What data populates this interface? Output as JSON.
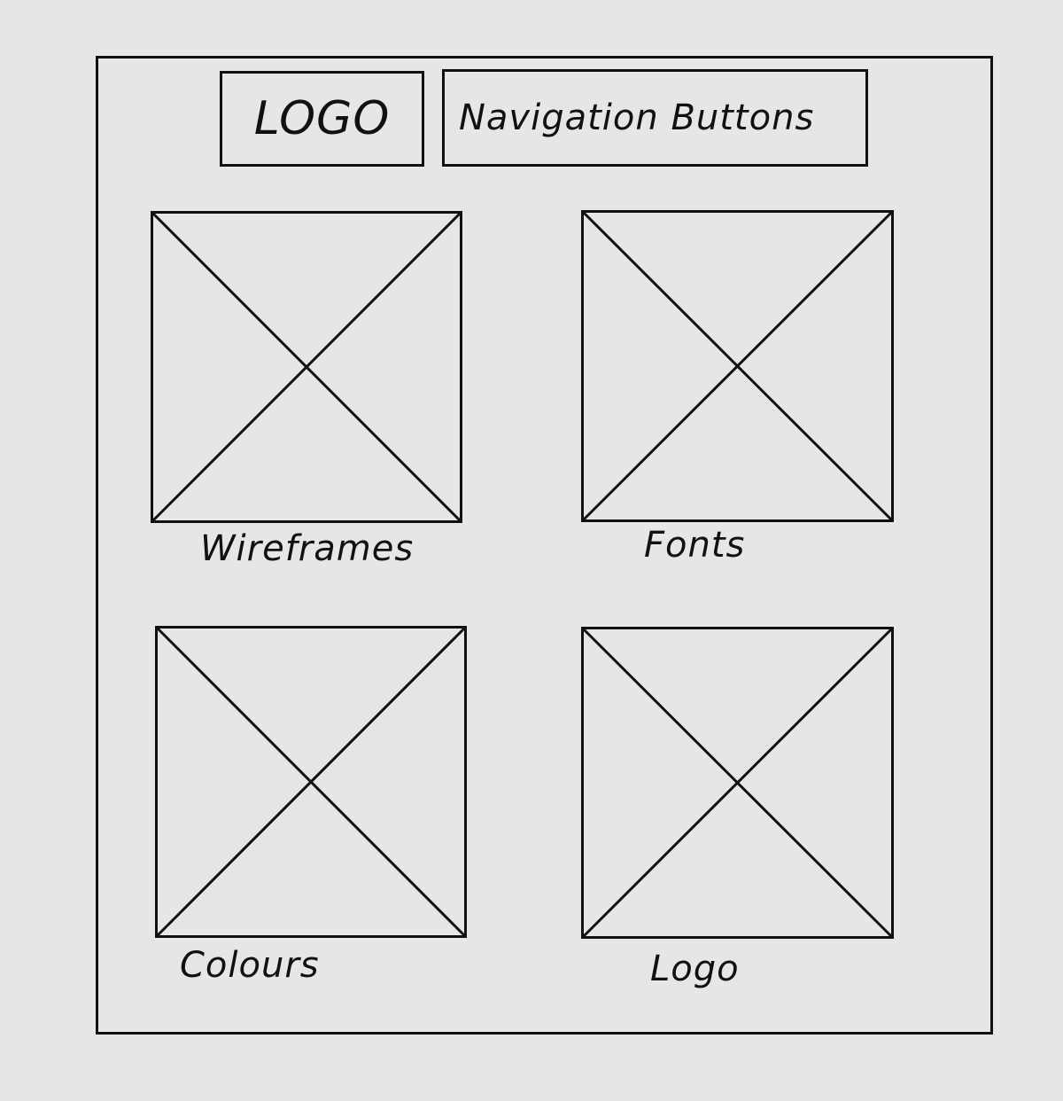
{
  "header": {
    "logo_label": "LOGO",
    "nav_label": "Navigation Buttons"
  },
  "tiles": [
    {
      "caption": "Wireframes"
    },
    {
      "caption": "Fonts"
    },
    {
      "caption": "Colours"
    },
    {
      "caption": "Logo"
    }
  ],
  "colors": {
    "background": "#e6e6e6",
    "stroke": "#111111"
  }
}
